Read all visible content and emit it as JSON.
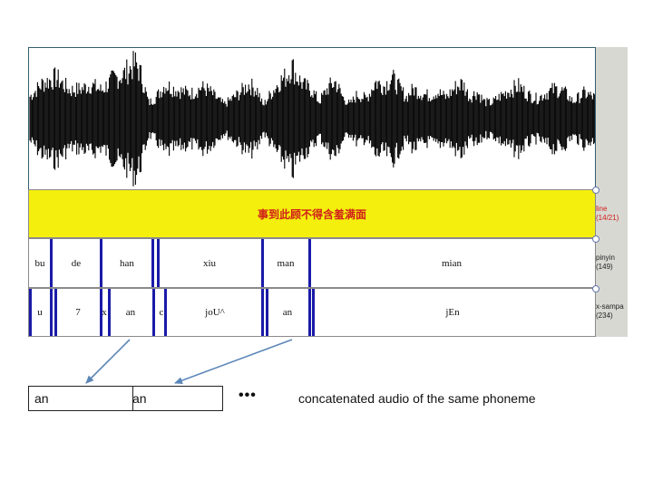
{
  "annotation_tiers": {
    "line": {
      "text": "事到此顾不得含羞满面",
      "label": "line",
      "count": "(14/21)",
      "background": "#f5ef0d",
      "text_color": "#d0201a"
    },
    "pinyin": {
      "label": "pinyin",
      "count": "(149)",
      "segments": [
        "bu",
        "de",
        "han",
        "xiu",
        "man",
        "mian"
      ]
    },
    "xsampa": {
      "label": "x-sampa",
      "count": "(234)",
      "segments": [
        "u",
        "7",
        "x",
        "an",
        "c",
        "joU^",
        "an",
        "jEn"
      ]
    }
  },
  "concatenated": {
    "cells": [
      "an",
      "an"
    ],
    "ellipsis": "•••",
    "caption": "concatenated audio of the same phoneme"
  },
  "colors": {
    "boundary": "#1a1aa8",
    "arrow": "#5b86b8",
    "panel": "#d8d8d3"
  }
}
